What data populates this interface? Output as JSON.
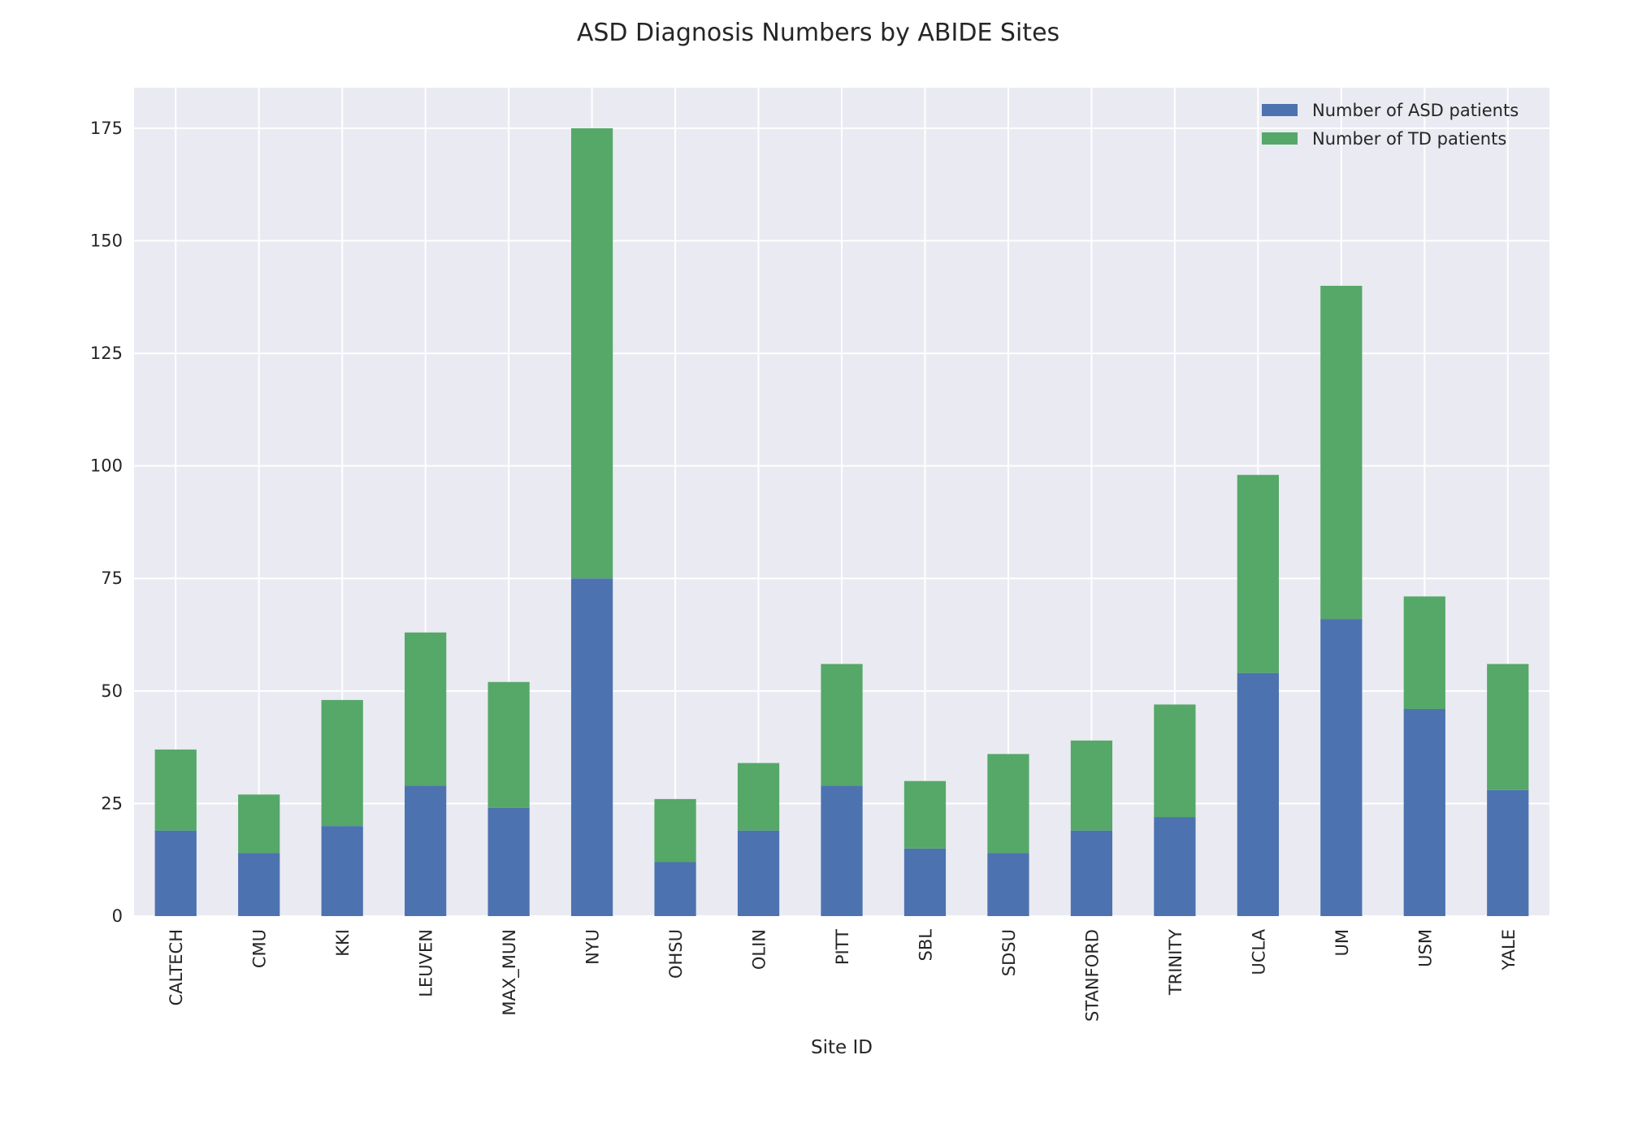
{
  "chart_data": {
    "type": "bar",
    "stacked": true,
    "title": "ASD Diagnosis Numbers by ABIDE Sites",
    "xlabel": "Site ID",
    "ylabel": "",
    "ylim": [
      0,
      184
    ],
    "yticks": [
      0,
      25,
      50,
      75,
      100,
      125,
      150,
      175
    ],
    "grid": true,
    "legend_position": "top-right",
    "categories": [
      "CALTECH",
      "CMU",
      "KKI",
      "LEUVEN",
      "MAX_MUN",
      "NYU",
      "OHSU",
      "OLIN",
      "PITT",
      "SBL",
      "SDSU",
      "STANFORD",
      "TRINITY",
      "UCLA",
      "UM",
      "USM",
      "YALE"
    ],
    "series": [
      {
        "name": "Number of ASD patients",
        "color": "#4c72b0",
        "values": [
          19,
          14,
          20,
          29,
          24,
          75,
          12,
          19,
          29,
          15,
          14,
          19,
          22,
          54,
          66,
          46,
          28
        ]
      },
      {
        "name": "Number of TD patients",
        "color": "#55a868",
        "values": [
          18,
          13,
          28,
          34,
          28,
          100,
          14,
          15,
          27,
          15,
          22,
          20,
          25,
          44,
          74,
          25,
          28
        ]
      }
    ],
    "colors": {
      "plot_background": "#eaeaf2",
      "grid": "#ffffff",
      "text": "#262626"
    }
  }
}
